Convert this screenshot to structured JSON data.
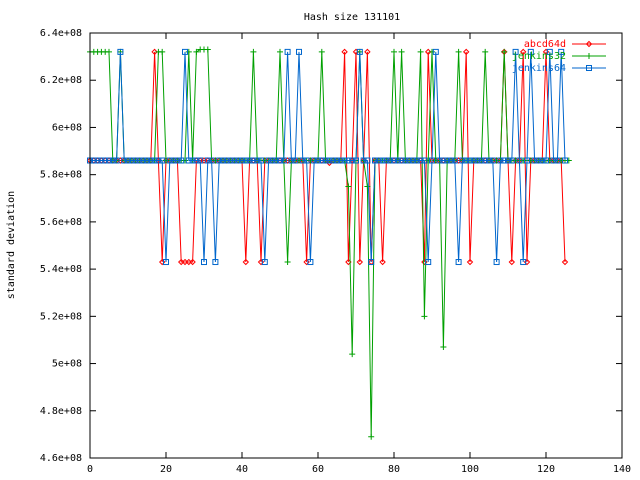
{
  "chart_data": {
    "type": "line",
    "title": "Hash size 131101",
    "xlabel": "",
    "ylabel": "standard deviation",
    "xlim": [
      0,
      140
    ],
    "ylim": [
      460000000,
      640000000
    ],
    "x_ticks": [
      0,
      20,
      40,
      60,
      80,
      100,
      120,
      140
    ],
    "x_tick_labels": [
      "0",
      "20",
      "40",
      "60",
      "80",
      "100",
      "120",
      "140"
    ],
    "y_ticks": [
      460000000,
      480000000,
      500000000,
      520000000,
      540000000,
      560000000,
      580000000,
      600000000,
      620000000,
      640000000
    ],
    "y_tick_labels": [
      "4.6e+08",
      "4.8e+08",
      "5e+08",
      "5.2e+08",
      "5.4e+08",
      "5.6e+08",
      "5.8e+08",
      "6e+08",
      "6.2e+08",
      "6.4e+08"
    ],
    "grid": false,
    "legend_position": "top-right",
    "series": [
      {
        "name": "abcd64d",
        "color": "#ff0000",
        "marker": "diamond",
        "x": [
          0,
          1,
          2,
          3,
          4,
          5,
          6,
          7,
          8,
          9,
          10,
          11,
          12,
          13,
          14,
          15,
          16,
          17,
          18,
          19,
          20,
          21,
          22,
          23,
          24,
          25,
          26,
          27,
          28,
          29,
          30,
          31,
          32,
          33,
          34,
          35,
          36,
          37,
          38,
          39,
          40,
          41,
          42,
          43,
          44,
          45,
          46,
          47,
          48,
          49,
          50,
          51,
          52,
          53,
          54,
          55,
          56,
          57,
          58,
          59,
          60,
          61,
          62,
          63,
          64,
          65,
          66,
          67,
          68,
          69,
          70,
          71,
          72,
          73,
          74,
          75,
          76,
          77,
          78,
          79,
          80,
          81,
          82,
          83,
          84,
          85,
          86,
          87,
          88,
          89,
          90,
          91,
          92,
          93,
          94,
          95,
          96,
          97,
          98,
          99,
          100,
          101,
          102,
          103,
          104,
          105,
          106,
          107,
          108,
          109,
          110,
          111,
          112,
          113,
          114,
          115,
          116,
          117,
          118,
          119,
          120,
          121,
          122,
          123,
          124,
          125
        ],
        "values": [
          586000000,
          586000000,
          586000000,
          586000000,
          586000000,
          586000000,
          586000000,
          586000000,
          586000000,
          586000000,
          586000000,
          586000000,
          586000000,
          586000000,
          586000000,
          586000000,
          586000000,
          632000000,
          586000000,
          543000000,
          586000000,
          586000000,
          586000000,
          586000000,
          543000000,
          543000000,
          543000000,
          543000000,
          586000000,
          586000000,
          586000000,
          586000000,
          586000000,
          586000000,
          586000000,
          586000000,
          586000000,
          586000000,
          586000000,
          586000000,
          586000000,
          543000000,
          586000000,
          586000000,
          586000000,
          543000000,
          586000000,
          586000000,
          586000000,
          586000000,
          586000000,
          586000000,
          586000000,
          586000000,
          586000000,
          586000000,
          586000000,
          543000000,
          586000000,
          586000000,
          586000000,
          586000000,
          586000000,
          585000000,
          586000000,
          586000000,
          586000000,
          632000000,
          543000000,
          586000000,
          632000000,
          543000000,
          586000000,
          632000000,
          543000000,
          586000000,
          586000000,
          543000000,
          586000000,
          586000000,
          586000000,
          586000000,
          586000000,
          586000000,
          586000000,
          586000000,
          586000000,
          586000000,
          543000000,
          632000000,
          586000000,
          586000000,
          586000000,
          586000000,
          586000000,
          586000000,
          586000000,
          586000000,
          586000000,
          632000000,
          543000000,
          586000000,
          586000000,
          586000000,
          586000000,
          586000000,
          586000000,
          586000000,
          586000000,
          632000000,
          586000000,
          543000000,
          586000000,
          586000000,
          632000000,
          543000000,
          586000000,
          586000000,
          586000000,
          586000000,
          632000000,
          586000000,
          586000000,
          586000000,
          586000000,
          543000000
        ]
      },
      {
        "name": "jenkins32",
        "color": "#00a000",
        "marker": "plus",
        "x": [
          0,
          1,
          2,
          3,
          4,
          5,
          6,
          7,
          8,
          9,
          10,
          11,
          12,
          13,
          14,
          15,
          16,
          17,
          18,
          19,
          20,
          21,
          22,
          23,
          24,
          25,
          26,
          27,
          28,
          29,
          30,
          31,
          32,
          33,
          34,
          35,
          36,
          37,
          38,
          39,
          40,
          41,
          42,
          43,
          44,
          45,
          46,
          47,
          48,
          49,
          50,
          51,
          52,
          53,
          54,
          55,
          56,
          57,
          58,
          59,
          60,
          61,
          62,
          63,
          64,
          65,
          66,
          67,
          68,
          69,
          70,
          71,
          72,
          73,
          74,
          75,
          76,
          77,
          78,
          79,
          80,
          81,
          82,
          83,
          84,
          85,
          86,
          87,
          88,
          89,
          90,
          91,
          92,
          93,
          94,
          95,
          96,
          97,
          98,
          99,
          100,
          101,
          102,
          103,
          104,
          105,
          106,
          107,
          108,
          109,
          110,
          111,
          112,
          113,
          114,
          115,
          116,
          117,
          118,
          119,
          120,
          121,
          122,
          123,
          124,
          125,
          126
        ],
        "values": [
          632000000,
          632000000,
          632000000,
          632000000,
          632000000,
          632000000,
          586000000,
          586000000,
          632000000,
          586000000,
          586000000,
          586000000,
          586000000,
          586000000,
          586000000,
          586000000,
          586000000,
          586000000,
          632000000,
          632000000,
          586000000,
          586000000,
          586000000,
          586000000,
          586000000,
          586000000,
          632000000,
          586000000,
          632000000,
          633000000,
          633000000,
          633000000,
          586000000,
          586000000,
          586000000,
          586000000,
          586000000,
          586000000,
          586000000,
          586000000,
          586000000,
          586000000,
          586000000,
          632000000,
          586000000,
          586000000,
          586000000,
          586000000,
          586000000,
          586000000,
          632000000,
          586000000,
          543000000,
          586000000,
          586000000,
          586000000,
          586000000,
          586000000,
          586000000,
          586000000,
          586000000,
          632000000,
          586000000,
          586000000,
          586000000,
          586000000,
          586000000,
          586000000,
          575000000,
          504000000,
          586000000,
          632000000,
          586000000,
          575000000,
          469000000,
          586000000,
          586000000,
          586000000,
          586000000,
          586000000,
          632000000,
          586000000,
          632000000,
          586000000,
          586000000,
          586000000,
          586000000,
          632000000,
          520000000,
          586000000,
          632000000,
          586000000,
          586000000,
          507000000,
          586000000,
          586000000,
          586000000,
          632000000,
          586000000,
          586000000,
          586000000,
          586000000,
          586000000,
          586000000,
          632000000,
          586000000,
          586000000,
          586000000,
          586000000,
          632000000,
          586000000,
          586000000,
          586000000,
          586000000,
          586000000,
          586000000,
          586000000,
          586000000,
          586000000,
          586000000,
          586000000,
          586000000,
          586000000,
          586000000,
          586000000,
          586000000,
          586000000
        ]
      },
      {
        "name": "jenkins64",
        "color": "#0066cc",
        "marker": "square",
        "x": [
          0,
          1,
          2,
          3,
          4,
          5,
          6,
          7,
          8,
          9,
          10,
          11,
          12,
          13,
          14,
          15,
          16,
          17,
          18,
          19,
          20,
          21,
          22,
          23,
          24,
          25,
          26,
          27,
          28,
          29,
          30,
          31,
          32,
          33,
          34,
          35,
          36,
          37,
          38,
          39,
          40,
          41,
          42,
          43,
          44,
          45,
          46,
          47,
          48,
          49,
          50,
          51,
          52,
          53,
          54,
          55,
          56,
          57,
          58,
          59,
          60,
          61,
          62,
          63,
          64,
          65,
          66,
          67,
          68,
          69,
          70,
          71,
          72,
          73,
          74,
          75,
          76,
          77,
          78,
          79,
          80,
          81,
          82,
          83,
          84,
          85,
          86,
          87,
          88,
          89,
          90,
          91,
          92,
          93,
          94,
          95,
          96,
          97,
          98,
          99,
          100,
          101,
          102,
          103,
          104,
          105,
          106,
          107,
          108,
          109,
          110,
          111,
          112,
          113,
          114,
          115,
          116,
          117,
          118,
          119,
          120,
          121,
          122,
          123,
          124,
          125
        ],
        "values": [
          586000000,
          586000000,
          586000000,
          586000000,
          586000000,
          586000000,
          586000000,
          586000000,
          632000000,
          586000000,
          586000000,
          586000000,
          586000000,
          586000000,
          586000000,
          586000000,
          586000000,
          586000000,
          586000000,
          586000000,
          543000000,
          586000000,
          586000000,
          586000000,
          586000000,
          632000000,
          586000000,
          586000000,
          586000000,
          586000000,
          543000000,
          586000000,
          586000000,
          543000000,
          586000000,
          586000000,
          586000000,
          586000000,
          586000000,
          586000000,
          586000000,
          586000000,
          586000000,
          586000000,
          586000000,
          586000000,
          543000000,
          586000000,
          586000000,
          586000000,
          586000000,
          586000000,
          632000000,
          586000000,
          586000000,
          632000000,
          586000000,
          586000000,
          543000000,
          586000000,
          586000000,
          586000000,
          586000000,
          586000000,
          586000000,
          586000000,
          586000000,
          586000000,
          586000000,
          586000000,
          586000000,
          632000000,
          586000000,
          586000000,
          543000000,
          586000000,
          586000000,
          586000000,
          586000000,
          586000000,
          586000000,
          586000000,
          586000000,
          586000000,
          586000000,
          586000000,
          586000000,
          586000000,
          586000000,
          543000000,
          586000000,
          632000000,
          586000000,
          586000000,
          586000000,
          586000000,
          586000000,
          543000000,
          586000000,
          586000000,
          586000000,
          586000000,
          586000000,
          586000000,
          586000000,
          586000000,
          586000000,
          543000000,
          586000000,
          586000000,
          586000000,
          586000000,
          632000000,
          586000000,
          543000000,
          586000000,
          632000000,
          586000000,
          586000000,
          586000000,
          586000000,
          632000000,
          586000000,
          586000000,
          632000000,
          586000000
        ]
      }
    ]
  }
}
